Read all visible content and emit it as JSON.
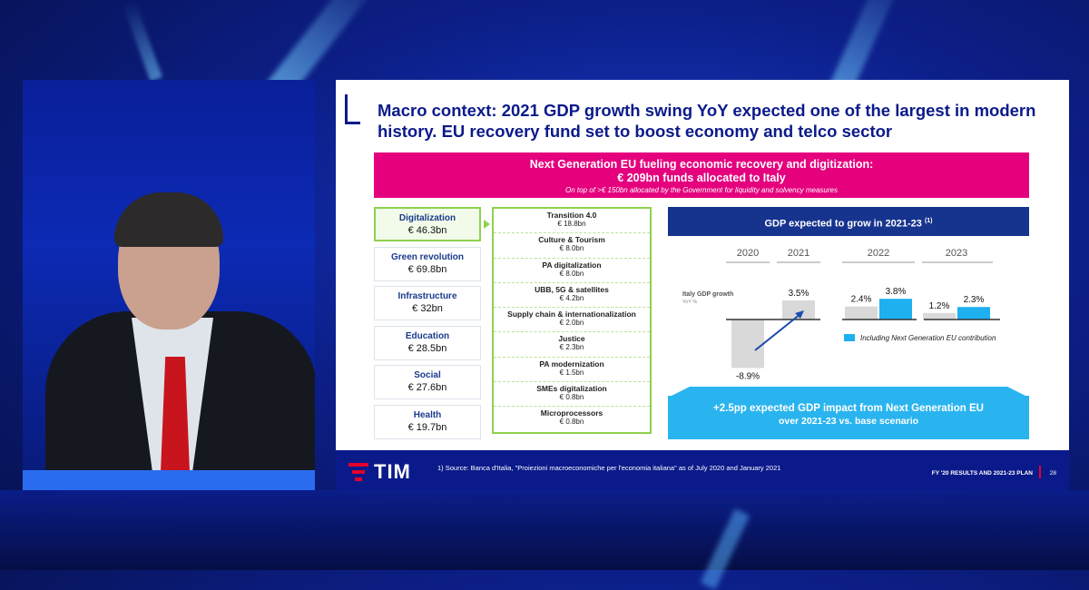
{
  "slide": {
    "title": "Macro context: 2021 GDP growth swing YoY expected one of the largest in modern history. EU recovery fund set to boost economy and telco sector",
    "banner": {
      "line1": "Next Generation EU fueling economic recovery and digitization:",
      "line2": "€ 209bn funds allocated to Italy",
      "line3": "On top of >€ 150bn allocated by the Government for liquidity and solvency measures"
    },
    "categories": [
      {
        "name": "Digitalization",
        "value": "€ 46.3bn"
      },
      {
        "name": "Green revolution",
        "value": "€ 69.8bn"
      },
      {
        "name": "Infrastructure",
        "value": "€ 32bn"
      },
      {
        "name": "Education",
        "value": "€ 28.5bn"
      },
      {
        "name": "Social",
        "value": "€ 27.6bn"
      },
      {
        "name": "Health",
        "value": "€ 19.7bn"
      }
    ],
    "digitalization_items": [
      {
        "name": "Transition 4.0",
        "value": "€ 18.8bn"
      },
      {
        "name": "Culture & Tourism",
        "value": "€ 8.0bn"
      },
      {
        "name": "PA digitalization",
        "value": "€ 8.0bn"
      },
      {
        "name": "UBB, 5G & satellites",
        "value": "€ 4.2bn"
      },
      {
        "name": "Supply chain & internationalization",
        "value": "€ 2.0bn"
      },
      {
        "name": "Justice",
        "value": "€ 2.3bn"
      },
      {
        "name": "PA modernization",
        "value": "€ 1.5bn"
      },
      {
        "name": "SMEs digitalization",
        "value": "€ 0.8bn"
      },
      {
        "name": "Microprocessors",
        "value": "€ 0.8bn"
      }
    ],
    "chart_header": "GDP expected to grow in 2021-23",
    "chart_header_note": "(1)",
    "impact": {
      "line1": "+2.5pp expected GDP impact from Next Generation EU",
      "line2": "over 2021-23 vs. base scenario"
    },
    "footer": {
      "brand": "TIM",
      "footnote": "1)    Source: Banca d'Italia, \"Proiezioni macroeconomiche per l'economia italiana\" as of July 2020 and January 2021",
      "deck": "FY '20 RESULTS AND 2021-23 PLAN",
      "page": "28"
    }
  },
  "chart_data": {
    "type": "bar",
    "series_label": "Italy GDP growth",
    "series_sublabel": "YoY %",
    "years": [
      "2020",
      "2021",
      "2022",
      "2023"
    ],
    "base": [
      {
        "year": "2020",
        "value": -8.9,
        "label": "-8.9%"
      },
      {
        "year": "2021",
        "value": 3.5,
        "label": "3.5%"
      },
      {
        "year": "2022",
        "value": 2.4,
        "label": "2.4%"
      },
      {
        "year": "2023",
        "value": 1.2,
        "label": "1.2%"
      }
    ],
    "with_ngeu": [
      {
        "year": "2022",
        "value": 3.8,
        "label": "3.8%"
      },
      {
        "year": "2023",
        "value": 2.3,
        "label": "2.3%"
      }
    ],
    "legend": "Including Next Generation EU contribution",
    "colors": {
      "base": "#d9d9d9",
      "ngeu": "#1fb0ef",
      "arrow": "#1a4bb0",
      "axis": "#333333"
    }
  },
  "colors": {
    "navy": "#0b1a8a",
    "magenta": "#e5007e",
    "green": "#8fd14f",
    "cyan": "#2ab4ef",
    "tim_red": "#e4002b"
  }
}
